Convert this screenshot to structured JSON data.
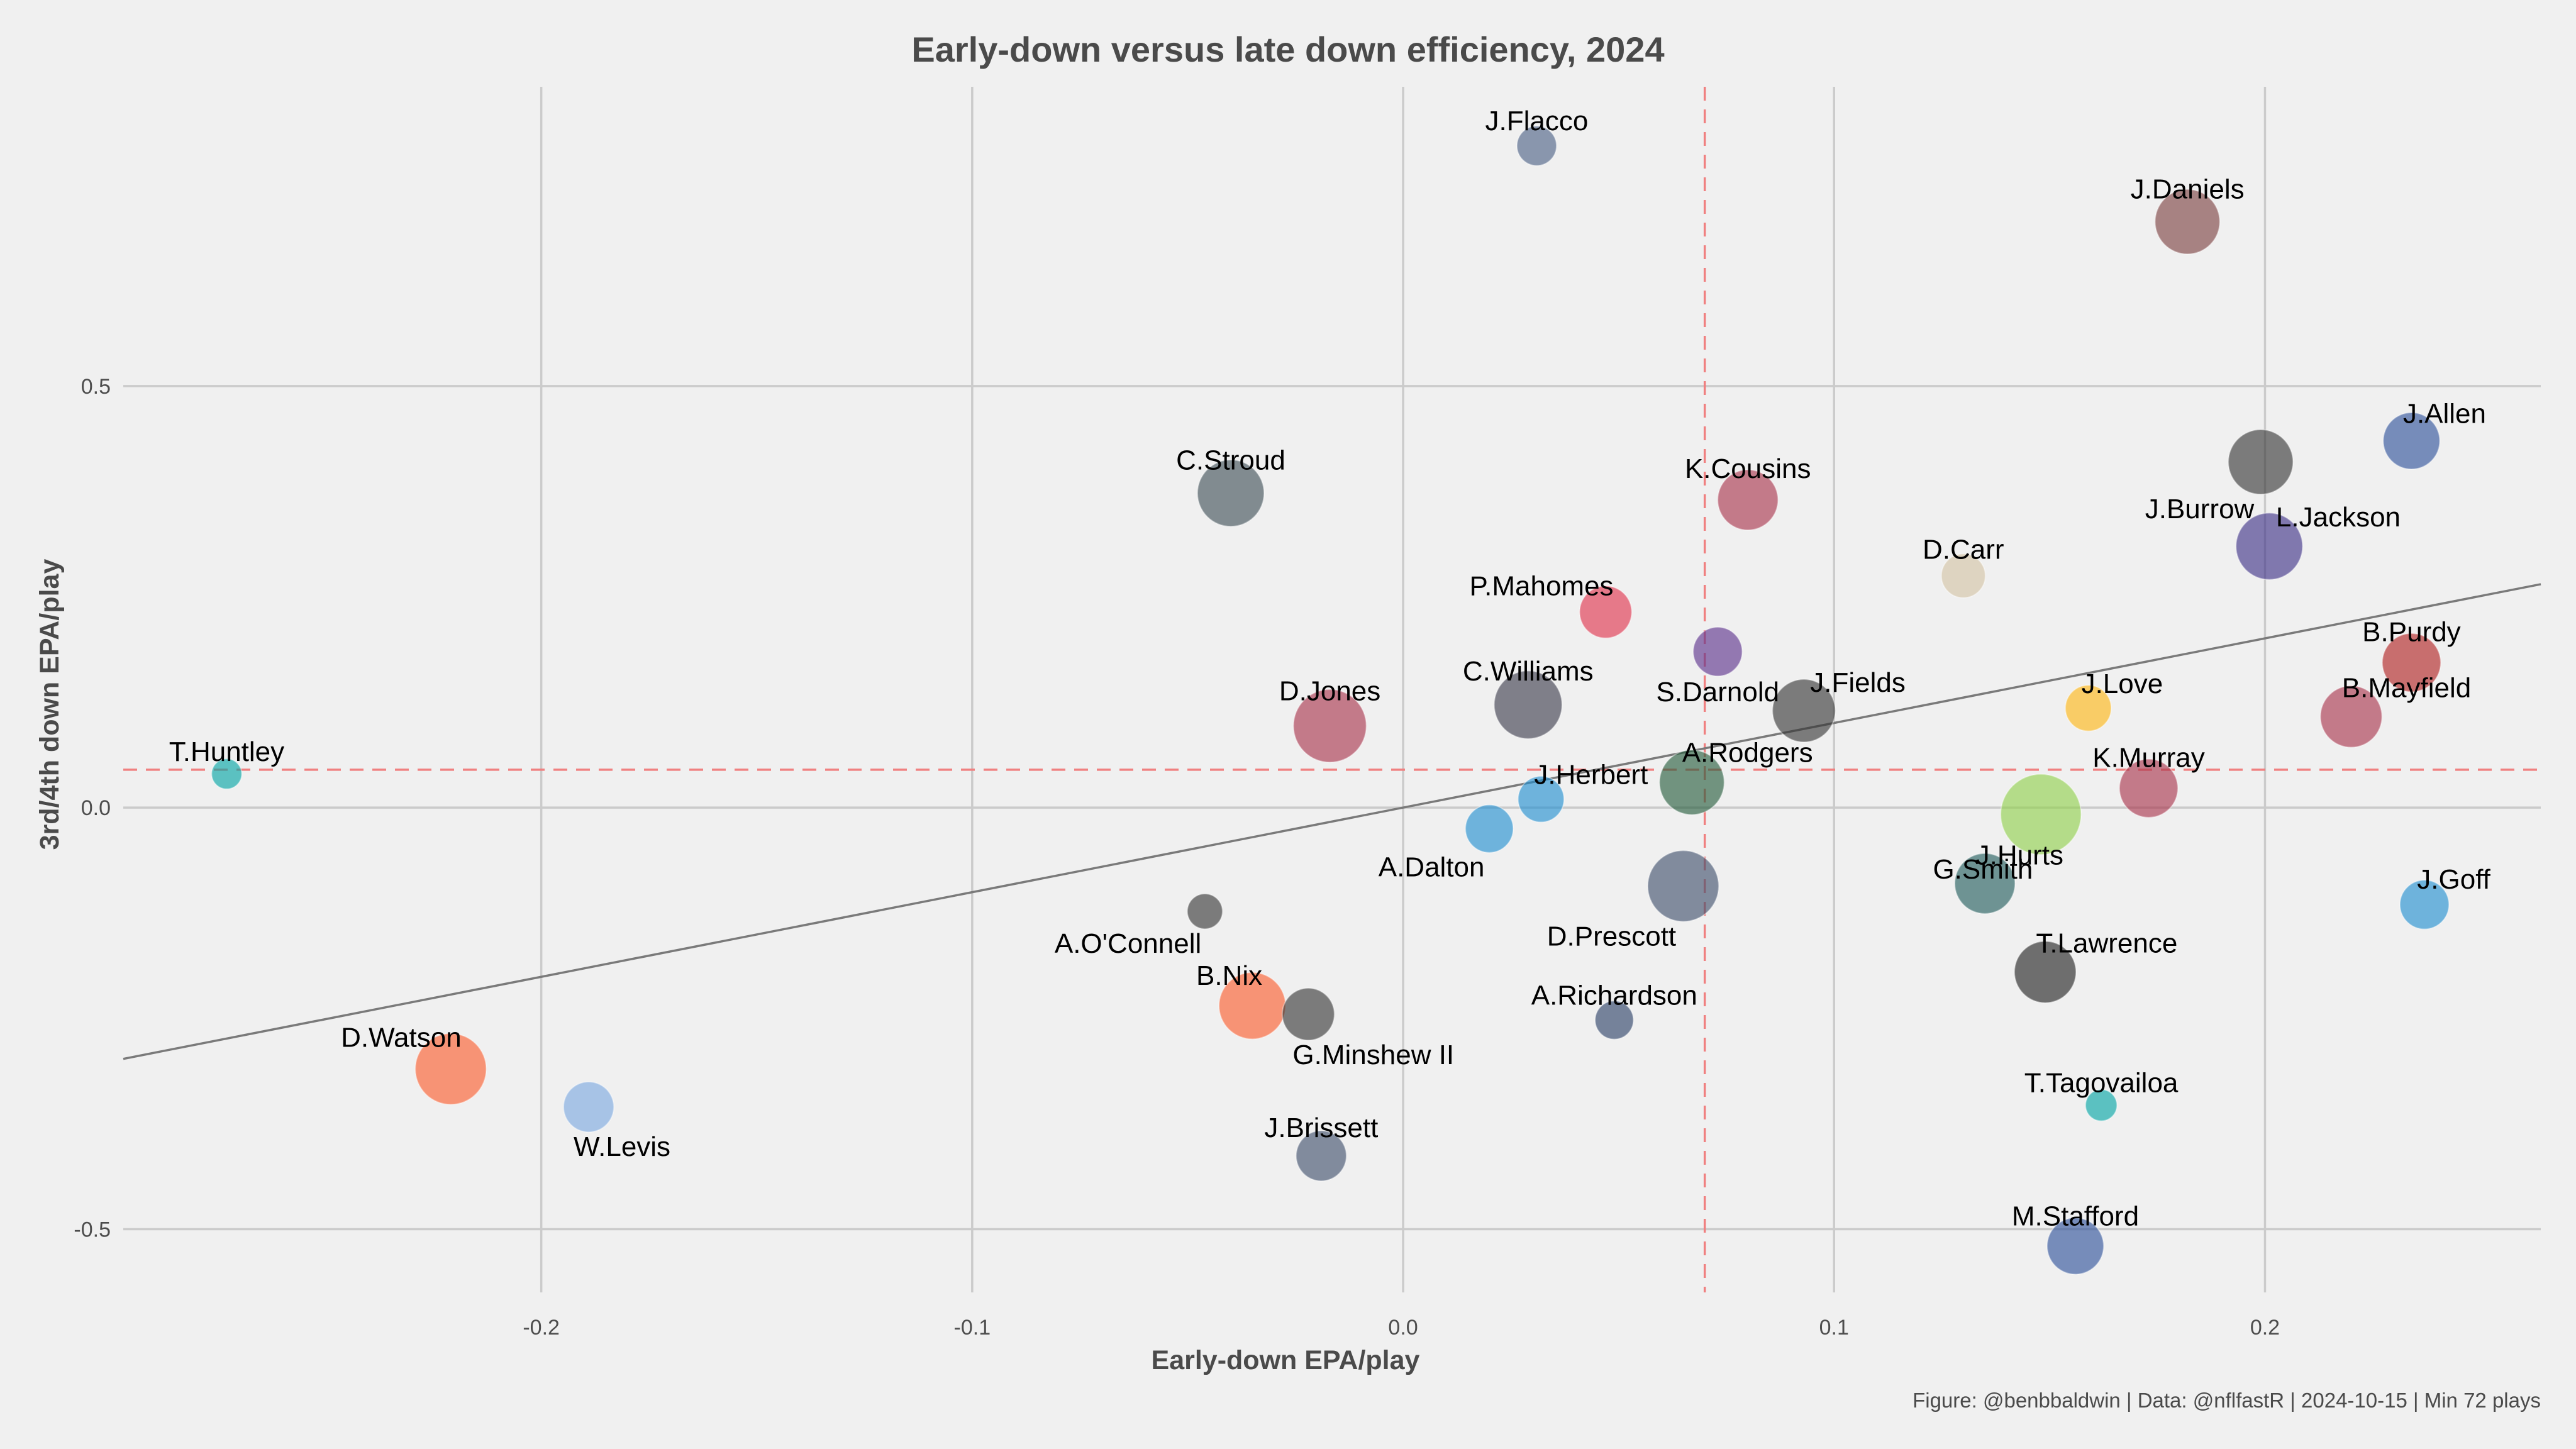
{
  "chart_data": {
    "type": "scatter",
    "title": "Early-down versus late down efficiency, 2024",
    "xlabel": "Early-down EPA/play",
    "ylabel": "3rd/4th down EPA/play",
    "caption": "Figure: @benbbaldwin | Data: @nflfastR | 2024-10-15 | Min 72 plays",
    "xlim": [
      -0.297,
      0.264
    ],
    "ylim": [
      -0.575,
      0.855
    ],
    "xticks": [
      -0.2,
      -0.1,
      0.0,
      0.1,
      0.2
    ],
    "xtick_labels": [
      "-0.2",
      "-0.1",
      "0.0",
      "0.1",
      "0.2"
    ],
    "yticks": [
      -0.5,
      0.0,
      0.5
    ],
    "ytick_labels": [
      "-0.5",
      "0.0",
      "0.5"
    ],
    "grid": true,
    "mean_x": 0.07,
    "mean_y": 0.045,
    "fit_line": {
      "x": [
        -0.297,
        0.264
      ],
      "y": [
        -0.298,
        0.265
      ]
    },
    "points": [
      {
        "name": "J.Flacco",
        "x": 0.031,
        "y": 0.785,
        "size": 0.35,
        "color": "#4a5f84",
        "label_pos": "above"
      },
      {
        "name": "J.Daniels",
        "x": 0.182,
        "y": 0.695,
        "size": 0.75,
        "color": "#7a3f3f",
        "label_pos": "above"
      },
      {
        "name": "J.Allen",
        "x": 0.234,
        "y": 0.435,
        "size": 0.62,
        "color": "#2c4f9a",
        "label_pos": "above-right"
      },
      {
        "name": "J.Burrow",
        "x": 0.199,
        "y": 0.41,
        "size": 0.75,
        "color": "#333333",
        "label_pos": "below-left"
      },
      {
        "name": "C.Stroud",
        "x": -0.04,
        "y": 0.373,
        "size": 0.78,
        "color": "#3d4d55",
        "label_pos": "above"
      },
      {
        "name": "K.Cousins",
        "x": 0.08,
        "y": 0.365,
        "size": 0.68,
        "color": "#a8324a",
        "label_pos": "above"
      },
      {
        "name": "L.Jackson",
        "x": 0.201,
        "y": 0.31,
        "size": 0.78,
        "color": "#3c2f86",
        "label_pos": "right"
      },
      {
        "name": "D.Carr",
        "x": 0.13,
        "y": 0.275,
        "size": 0.42,
        "color": "#d4c4a4",
        "label_pos": "above"
      },
      {
        "name": "P.Mahomes",
        "x": 0.047,
        "y": 0.232,
        "size": 0.55,
        "color": "#e0304a",
        "label_pos": "above-left"
      },
      {
        "name": "S.Darnold",
        "x": 0.073,
        "y": 0.185,
        "size": 0.5,
        "color": "#5b2f8a",
        "label_pos": "below"
      },
      {
        "name": "B.Purdy",
        "x": 0.234,
        "y": 0.172,
        "size": 0.65,
        "color": "#b01f1f",
        "label_pos": "above"
      },
      {
        "name": "C.Williams",
        "x": 0.029,
        "y": 0.122,
        "size": 0.8,
        "color": "#3a3a4a",
        "label_pos": "above"
      },
      {
        "name": "J.Love",
        "x": 0.159,
        "y": 0.118,
        "size": 0.45,
        "color": "#ffb612",
        "label_pos": "above-right"
      },
      {
        "name": "J.Fields",
        "x": 0.093,
        "y": 0.115,
        "size": 0.72,
        "color": "#333333",
        "label_pos": "right"
      },
      {
        "name": "B.Mayfield",
        "x": 0.22,
        "y": 0.108,
        "size": 0.7,
        "color": "#a8324a",
        "label_pos": "above-right"
      },
      {
        "name": "D.Jones",
        "x": -0.017,
        "y": 0.097,
        "size": 0.88,
        "color": "#a8324a",
        "label_pos": "above"
      },
      {
        "name": "T.Huntley",
        "x": -0.273,
        "y": 0.04,
        "size": 0.2,
        "color": "#00a5a5",
        "label_pos": "above"
      },
      {
        "name": "A.Rodgers",
        "x": 0.067,
        "y": 0.03,
        "size": 0.75,
        "color": "#235a3a",
        "label_pos": "above-right"
      },
      {
        "name": "K.Murray",
        "x": 0.173,
        "y": 0.023,
        "size": 0.65,
        "color": "#a8324a",
        "label_pos": "above"
      },
      {
        "name": "J.Herbert",
        "x": 0.032,
        "y": 0.01,
        "size": 0.45,
        "color": "#1f8ed0",
        "label_pos": "above-right"
      },
      {
        "name": "G.Smith",
        "x": 0.148,
        "y": -0.008,
        "size": 1.0,
        "color": "#8fd04a",
        "label_pos": "below-left"
      },
      {
        "name": "A.Dalton",
        "x": 0.02,
        "y": -0.025,
        "size": 0.48,
        "color": "#1f8ed0",
        "label_pos": "below-left"
      },
      {
        "name": "D.Prescott",
        "x": 0.065,
        "y": -0.093,
        "size": 0.85,
        "color": "#3d4d6a",
        "label_pos": "below-left"
      },
      {
        "name": "J.Hurts",
        "x": 0.135,
        "y": -0.09,
        "size": 0.68,
        "color": "#1e5a5a",
        "label_pos": "above-right"
      },
      {
        "name": "J.Goff",
        "x": 0.237,
        "y": -0.115,
        "size": 0.5,
        "color": "#1f8ed0",
        "label_pos": "above-right"
      },
      {
        "name": "A.O'Connell",
        "x": -0.046,
        "y": -0.123,
        "size": 0.28,
        "color": "#333333",
        "label_pos": "below-left"
      },
      {
        "name": "T.Lawrence",
        "x": 0.149,
        "y": -0.195,
        "size": 0.7,
        "color": "#1f1f1f",
        "label_pos": "above-right"
      },
      {
        "name": "B.Nix",
        "x": -0.035,
        "y": -0.235,
        "size": 0.78,
        "color": "#fb5b2a",
        "label_pos": "above-left"
      },
      {
        "name": "G.Minshew II",
        "x": -0.022,
        "y": -0.245,
        "size": 0.55,
        "color": "#333333",
        "label_pos": "below-right"
      },
      {
        "name": "A.Richardson",
        "x": 0.049,
        "y": -0.252,
        "size": 0.33,
        "color": "#2a3f66",
        "label_pos": "above"
      },
      {
        "name": "D.Watson",
        "x": -0.221,
        "y": -0.31,
        "size": 0.85,
        "color": "#fb5b2a",
        "label_pos": "above-left"
      },
      {
        "name": "T.Tagovailoa",
        "x": 0.162,
        "y": -0.353,
        "size": 0.22,
        "color": "#00a5a5",
        "label_pos": "above"
      },
      {
        "name": "W.Levis",
        "x": -0.189,
        "y": -0.355,
        "size": 0.52,
        "color": "#7aa8e0",
        "label_pos": "below-right"
      },
      {
        "name": "J.Brissett",
        "x": -0.019,
        "y": -0.413,
        "size": 0.52,
        "color": "#3d4d6a",
        "label_pos": "above"
      },
      {
        "name": "M.Stafford",
        "x": 0.156,
        "y": -0.52,
        "size": 0.62,
        "color": "#2c4f9a",
        "label_pos": "above"
      }
    ]
  }
}
